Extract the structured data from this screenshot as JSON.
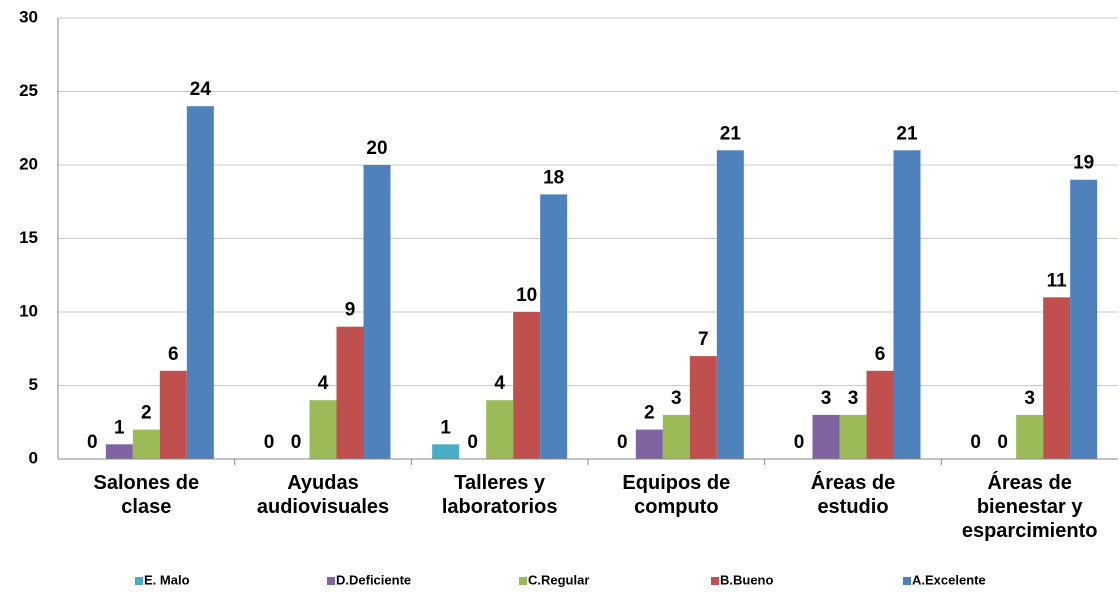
{
  "chart_data": {
    "type": "bar",
    "categories": [
      "Salones de clase",
      "Ayudas audiovisuales",
      "Talleres y laboratorios",
      "Equipos de computo",
      "Áreas de estudio",
      "Áreas de bienestar y esparcimiento"
    ],
    "series": [
      {
        "name": "E. Malo",
        "color": "#4bacc6",
        "values": [
          0,
          0,
          1,
          0,
          0,
          0
        ]
      },
      {
        "name": "D.Deficiente",
        "color": "#8064a2",
        "values": [
          1,
          0,
          0,
          2,
          3,
          0
        ]
      },
      {
        "name": "C.Regular",
        "color": "#9bbb59",
        "values": [
          2,
          4,
          4,
          3,
          3,
          3
        ]
      },
      {
        "name": "B.Bueno",
        "color": "#c0504d",
        "values": [
          6,
          9,
          10,
          7,
          6,
          11
        ]
      },
      {
        "name": "A.Excelente",
        "color": "#4f81bd",
        "values": [
          24,
          20,
          18,
          21,
          21,
          19
        ]
      }
    ],
    "ylim": [
      0,
      30
    ],
    "yticks": [
      0,
      5,
      10,
      15,
      20,
      25,
      30
    ],
    "grid": true,
    "legend": "bottom"
  }
}
